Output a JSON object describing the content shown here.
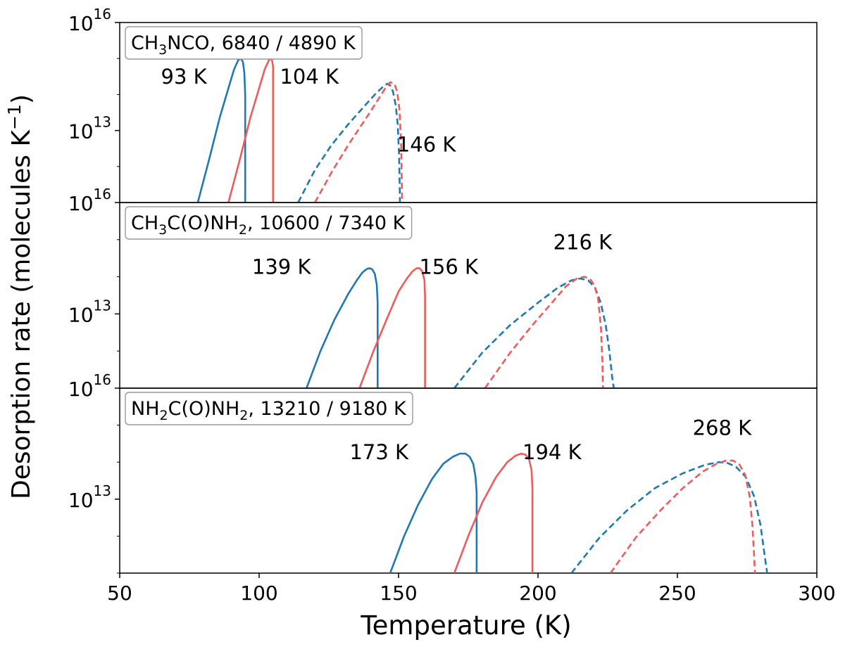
{
  "chart_data": {
    "type": "line",
    "xlabel": "Temperature (K)",
    "ylabel": "Desorption rate (molecules K",
    "ylabel_sup": "−1",
    "ylabel_close": ")",
    "xlim": [
      50,
      300
    ],
    "xticks": [
      "50",
      "100",
      "150",
      "200",
      "250",
      "300"
    ],
    "yscale": "log",
    "ylim": [
      100000000000.0,
      1e+16
    ],
    "series_colors": {
      "blue": "#1f77b4",
      "red": "#f05a5a"
    },
    "panels": [
      {
        "label_main": "CH",
        "label_sub1": "3",
        "label_mid": "NCO",
        "label_sub2": "",
        "label_end": ", 6840 / 4890 K",
        "top_tick": "10",
        "top_tick_exp": "16",
        "mid_tick": "10",
        "mid_tick_exp": "13",
        "annotations": [
          {
            "text": "93 K",
            "x": 73,
            "y": 200000000000000.0
          },
          {
            "text": "104 K",
            "x": 118,
            "y": 200000000000000.0
          },
          {
            "text": "146 K",
            "x": 160,
            "y": 2600000000000.0
          }
        ],
        "series": [
          {
            "color": "blue",
            "dash": false,
            "x": [
              78,
              82,
              86,
              89,
              91,
              92.5,
              93.5,
              94.2,
              94.7,
              95.0,
              95.0
            ],
            "y": [
              100000000000.0,
              1500000000000.0,
              25000000000000.0,
              150000000000000.0,
              500000000000000.0,
              900000000000000.0,
              1000000000000000.0,
              800000000000000.0,
              400000000000000.0,
              100000000000000.0,
              100000000000.0
            ]
          },
          {
            "color": "red",
            "dash": false,
            "x": [
              89,
              93,
              97,
              100,
              102,
              103.5,
              104.5,
              105.0,
              105.0
            ],
            "y": [
              100000000000.0,
              1500000000000.0,
              25000000000000.0,
              150000000000000.0,
              500000000000000.0,
              900000000000000.0,
              1000000000000000.0,
              600000000000000.0,
              100000000000.0
            ]
          },
          {
            "color": "blue",
            "dash": true,
            "x": [
              114,
              120,
              126,
              132,
              138,
              142,
              145,
              146,
              147,
              148,
              149,
              149.7,
              150.2,
              150.5
            ],
            "y": [
              100000000000.0,
              800000000000.0,
              4000000000000.0,
              15000000000000.0,
              50000000000000.0,
              110000000000000.0,
              180000000000000.0,
              200000000000000.0,
              180000000000000.0,
              120000000000000.0,
              50000000000000.0,
              15000000000000.0,
              2000000000000.0,
              100000000000.0
            ]
          },
          {
            "color": "red",
            "dash": true,
            "x": [
              120,
              126,
              132,
              138,
              142,
              145,
              147,
              148.5,
              149.5,
              150.3,
              150.9,
              151.3
            ],
            "y": [
              100000000000.0,
              700000000000.0,
              4000000000000.0,
              20000000000000.0,
              60000000000000.0,
              140000000000000.0,
              220000000000000.0,
              200000000000000.0,
              120000000000000.0,
              40000000000000.0,
              5000000000000.0,
              100000000000.0
            ]
          }
        ]
      },
      {
        "label_main": "CH",
        "label_sub1": "3",
        "label_mid": "C(O)NH",
        "label_sub2": "2",
        "label_end": ", 10600 / 7340 K",
        "top_tick": "10",
        "top_tick_exp": "16",
        "mid_tick": "10",
        "mid_tick_exp": "13",
        "annotations": [
          {
            "text": "139 K",
            "x": 108,
            "y": 120000000000000.0
          },
          {
            "text": "156 K",
            "x": 168,
            "y": 120000000000000.0
          },
          {
            "text": "216 K",
            "x": 216,
            "y": 550000000000000.0
          }
        ],
        "series": [
          {
            "color": "blue",
            "dash": false,
            "x": [
              117,
              122,
              127,
              132,
              135,
              137,
              138.5,
              139.5,
              140.5,
              141.5,
              142.2,
              142.5,
              142.5
            ],
            "y": [
              100000000000.0,
              1000000000000.0,
              7000000000000.0,
              35000000000000.0,
              80000000000000.0,
              130000000000000.0,
              160000000000000.0,
              170000000000000.0,
              160000000000000.0,
              120000000000000.0,
              60000000000000.0,
              20000000000000.0,
              100000000000.0
            ]
          },
          {
            "color": "red",
            "dash": false,
            "x": [
              136,
              141,
              146,
              150,
              153,
              155,
              156.5,
              157.5,
              158.5,
              159.3,
              159.5,
              159.5
            ],
            "y": [
              100000000000.0,
              1000000000000.0,
              8000000000000.0,
              40000000000000.0,
              90000000000000.0,
              140000000000000.0,
              170000000000000.0,
              170000000000000.0,
              140000000000000.0,
              80000000000000.0,
              30000000000000.0,
              100000000000.0
            ]
          },
          {
            "color": "blue",
            "dash": true,
            "x": [
              170,
              180,
              190,
              200,
              207,
              212,
              215,
              218,
              220.5,
              222.5,
              224.3,
              225.6,
              226.6,
              227.2
            ],
            "y": [
              100000000000.0,
              900000000000.0,
              5000000000000.0,
              20000000000000.0,
              50000000000000.0,
              80000000000000.0,
              90000000000000.0,
              80000000000000.0,
              50000000000000.0,
              20000000000000.0,
              5000000000000.0,
              1000000000000.0,
              200000000000.0,
              100000000000.0
            ]
          },
          {
            "color": "red",
            "dash": true,
            "x": [
              181,
              190,
              198,
              205,
              210,
              214,
              216.5,
              218.5,
              220.2,
              221.6,
              222.6,
              223.1,
              223.3
            ],
            "y": [
              100000000000.0,
              900000000000.0,
              5000000000000.0,
              20000000000000.0,
              55000000000000.0,
              90000000000000.0,
              100000000000000.0,
              90000000000000.0,
              60000000000000.0,
              25000000000000.0,
              4000000000000.0,
              500000000000.0,
              100000000000.0
            ]
          }
        ]
      },
      {
        "label_main": "NH",
        "label_sub1": "2",
        "label_mid": "C(O)NH",
        "label_sub2": "2",
        "label_end": ", 13210 / 9180 K",
        "top_tick": "10",
        "top_tick_exp": "16",
        "mid_tick": "10",
        "mid_tick_exp": "13",
        "annotations": [
          {
            "text": "173 K",
            "x": 143,
            "y": 120000000000000.0
          },
          {
            "text": "194 K",
            "x": 205,
            "y": 120000000000000.0
          },
          {
            "text": "268 K",
            "x": 266,
            "y": 550000000000000.0
          }
        ],
        "series": [
          {
            "color": "blue",
            "dash": false,
            "x": [
              147,
              152,
              157,
              162,
              166,
              169.5,
              172,
              174,
              175.5,
              176.8,
              177.6,
              178,
              178
            ],
            "y": [
              100000000000.0,
              1000000000000.0,
              7000000000000.0,
              35000000000000.0,
              90000000000000.0,
              140000000000000.0,
              170000000000000.0,
              170000000000000.0,
              140000000000000.0,
              90000000000000.0,
              40000000000000.0,
              15000000000000.0,
              100000000000.0
            ]
          },
          {
            "color": "red",
            "dash": false,
            "x": [
              170,
              175,
              180,
              185,
              189,
              192,
              194,
              195.5,
              196.8,
              197.7,
              198,
              198
            ],
            "y": [
              100000000000.0,
              1000000000000.0,
              8000000000000.0,
              40000000000000.0,
              100000000000000.0,
              150000000000000.0,
              170000000000000.0,
              160000000000000.0,
              120000000000000.0,
              60000000000000.0,
              20000000000000.0,
              100000000000.0
            ]
          },
          {
            "color": "blue",
            "dash": true,
            "x": [
              212,
              222,
              232,
              242,
              252,
              260,
              265,
              268,
              271,
              274.5,
              277.5,
              279.8,
              281.3,
              282.2
            ],
            "y": [
              100000000000.0,
              900000000000.0,
              5000000000000.0,
              20000000000000.0,
              50000000000000.0,
              85000000000000.0,
              100000000000000.0,
              95000000000000.0,
              75000000000000.0,
              40000000000000.0,
              12000000000000.0,
              2000000000000.0,
              300000000000.0,
              100000000000.0
            ]
          },
          {
            "color": "red",
            "dash": true,
            "x": [
              226,
              235,
              244,
              252,
              259,
              264,
              267.5,
              270,
              272.3,
              274.3,
              275.9,
              276.9,
              277.5,
              277.8
            ],
            "y": [
              100000000000.0,
              900000000000.0,
              5000000000000.0,
              20000000000000.0,
              55000000000000.0,
              90000000000000.0,
              110000000000000.0,
              110000000000000.0,
              85000000000000.0,
              45000000000000.0,
              12000000000000.0,
              2000000000000.0,
              300000000000.0,
              100000000000.0
            ]
          }
        ]
      }
    ]
  }
}
